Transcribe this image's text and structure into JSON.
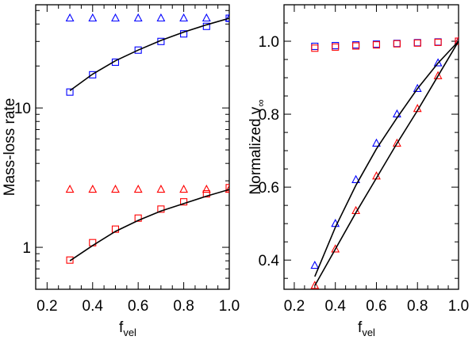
{
  "chart_data": [
    {
      "type": "scatter",
      "panel": "left",
      "yscale": "log",
      "xlabel": "f",
      "xlabel_sub": "vel",
      "ylabel": "Mass-loss rate",
      "xlim": [
        0.15,
        1.0
      ],
      "ylim": [
        0.5,
        55
      ],
      "xticks": [
        0.2,
        0.4,
        0.6,
        0.8,
        1.0
      ],
      "xtick_labels": [
        "0.2",
        "0.4",
        "0.6",
        "0.8",
        "1.0"
      ],
      "yticks": [
        1,
        10
      ],
      "ytick_labels": [
        "1",
        "10"
      ],
      "series": [
        {
          "name": "blue-triangles",
          "marker": "triangle",
          "color": "#0000ff",
          "x": [
            0.3,
            0.4,
            0.5,
            0.6,
            0.7,
            0.8,
            0.9,
            1.0
          ],
          "y": [
            44,
            44,
            44,
            44,
            44,
            44,
            44,
            44
          ]
        },
        {
          "name": "blue-squares",
          "marker": "square",
          "color": "#0000ff",
          "x": [
            0.3,
            0.4,
            0.5,
            0.6,
            0.7,
            0.8,
            0.9,
            1.0
          ],
          "y": [
            13.0,
            17.3,
            21.3,
            26.0,
            30.0,
            34.0,
            38.5,
            44.0
          ]
        },
        {
          "name": "blue-fit",
          "marker": "line",
          "color": "#000000",
          "x": [
            0.3,
            0.4,
            0.5,
            0.6,
            0.7,
            0.8,
            0.9,
            1.0
          ],
          "y": [
            13.3,
            17.5,
            21.8,
            26.0,
            30.5,
            35.0,
            39.5,
            44.0
          ]
        },
        {
          "name": "red-triangles",
          "marker": "triangle",
          "color": "#ff0000",
          "x": [
            0.3,
            0.4,
            0.5,
            0.6,
            0.7,
            0.8,
            0.9,
            1.0
          ],
          "y": [
            2.6,
            2.6,
            2.6,
            2.6,
            2.6,
            2.6,
            2.6,
            2.6
          ]
        },
        {
          "name": "red-squares",
          "marker": "square",
          "color": "#ff0000",
          "x": [
            0.3,
            0.4,
            0.5,
            0.6,
            0.7,
            0.8,
            0.9,
            1.0
          ],
          "y": [
            0.81,
            1.08,
            1.35,
            1.62,
            1.88,
            2.12,
            2.42,
            2.68
          ]
        },
        {
          "name": "red-fit",
          "marker": "line",
          "color": "#000000",
          "x": [
            0.3,
            0.4,
            0.5,
            0.6,
            0.7,
            0.8,
            0.9,
            1.0
          ],
          "y": [
            0.8,
            1.03,
            1.3,
            1.56,
            1.82,
            2.06,
            2.33,
            2.6
          ]
        }
      ]
    },
    {
      "type": "scatter",
      "panel": "right",
      "yscale": "linear",
      "xlabel": "f",
      "xlabel_sub": "vel",
      "ylabel": "Normalized v",
      "ylabel_sub": "∞",
      "xlim": [
        0.15,
        1.0
      ],
      "ylim": [
        0.32,
        1.1
      ],
      "xticks": [
        0.2,
        0.4,
        0.6,
        0.8,
        1.0
      ],
      "xtick_labels": [
        "0.2",
        "0.4",
        "0.6",
        "0.8",
        "1.0"
      ],
      "yticks": [
        0.4,
        0.6,
        0.8,
        1.0
      ],
      "ytick_labels": [
        "0.4",
        "0.6",
        "0.8",
        "1.0"
      ],
      "series": [
        {
          "name": "blue-squares",
          "marker": "square",
          "color": "#0000ff",
          "x": [
            0.3,
            0.4,
            0.5,
            0.6,
            0.7,
            0.8,
            0.9,
            1.0
          ],
          "y": [
            0.986,
            0.988,
            0.99,
            0.992,
            0.994,
            0.996,
            0.998,
            1.0
          ]
        },
        {
          "name": "red-squares",
          "marker": "square",
          "color": "#ff0000",
          "x": [
            0.3,
            0.4,
            0.5,
            0.6,
            0.7,
            0.8,
            0.9,
            1.0
          ],
          "y": [
            0.981,
            0.984,
            0.987,
            0.99,
            0.993,
            0.995,
            0.997,
            1.0
          ]
        },
        {
          "name": "blue-triangles",
          "marker": "triangle",
          "color": "#0000ff",
          "x": [
            0.3,
            0.4,
            0.5,
            0.6,
            0.7,
            0.8,
            0.9,
            1.0
          ],
          "y": [
            0.385,
            0.5,
            0.62,
            0.72,
            0.8,
            0.87,
            0.94,
            1.0
          ]
        },
        {
          "name": "red-triangles",
          "marker": "triangle",
          "color": "#ff0000",
          "x": [
            0.3,
            0.4,
            0.5,
            0.6,
            0.7,
            0.8,
            0.9,
            1.0
          ],
          "y": [
            0.33,
            0.43,
            0.535,
            0.63,
            0.72,
            0.815,
            0.905,
            1.0
          ]
        },
        {
          "name": "blue-fit",
          "marker": "line",
          "color": "#000000",
          "x": [
            0.3,
            0.4,
            0.5,
            0.6,
            0.7,
            0.8,
            0.9,
            1.0
          ],
          "y": [
            0.355,
            0.49,
            0.605,
            0.705,
            0.79,
            0.87,
            0.94,
            1.0
          ]
        },
        {
          "name": "red-fit",
          "marker": "line",
          "color": "#000000",
          "x": [
            0.3,
            0.4,
            0.5,
            0.6,
            0.7,
            0.8,
            0.9,
            1.0
          ],
          "y": [
            0.33,
            0.43,
            0.53,
            0.625,
            0.72,
            0.81,
            0.905,
            1.0
          ]
        }
      ]
    }
  ]
}
